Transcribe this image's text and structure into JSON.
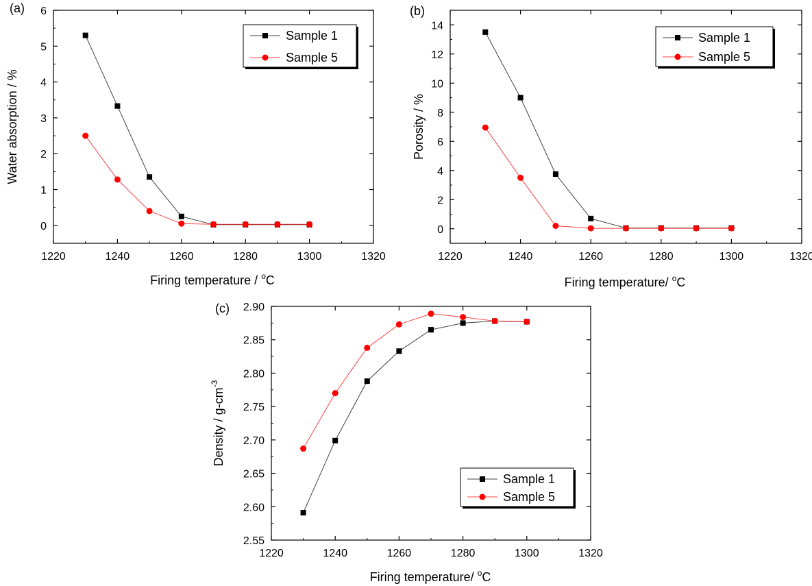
{
  "chart_data": [
    {
      "id": "a",
      "type": "line",
      "panel_label": "(a)",
      "xlabel": "Firing temperature / ",
      "xunit_sup": "o",
      "xunit": "C",
      "ylabel": "Water absorption / %",
      "xlim": [
        1220,
        1320
      ],
      "ylim": [
        -0.5,
        6
      ],
      "xticks": [
        1220,
        1240,
        1260,
        1280,
        1300,
        1320
      ],
      "xtick_labels": [
        "1220",
        "1240",
        "1260",
        "1280",
        "1300",
        "1320"
      ],
      "yticks": [
        0,
        1,
        2,
        3,
        4,
        5,
        6
      ],
      "ytick_labels": [
        "0",
        "1",
        "2",
        "3",
        "4",
        "5",
        "6"
      ],
      "legend_position": "top-right",
      "series": [
        {
          "name": "Sample 1",
          "color": "#000000",
          "marker": "square",
          "x": [
            1230,
            1240,
            1250,
            1260,
            1270,
            1280,
            1290,
            1300
          ],
          "y": [
            5.3,
            3.33,
            1.35,
            0.25,
            0.02,
            0.02,
            0.02,
            0.02
          ]
        },
        {
          "name": "Sample 5",
          "color": "#ff0000",
          "marker": "circle",
          "x": [
            1230,
            1240,
            1250,
            1260,
            1270,
            1280,
            1290,
            1300
          ],
          "y": [
            2.5,
            1.28,
            0.4,
            0.05,
            0.03,
            0.03,
            0.03,
            0.03
          ]
        }
      ]
    },
    {
      "id": "b",
      "type": "line",
      "panel_label": "(b)",
      "xlabel": "Firing temperature/ ",
      "xunit_sup": "o",
      "xunit": "C",
      "ylabel": "Porosity / %",
      "xlim": [
        1220,
        1320
      ],
      "ylim": [
        -1,
        15
      ],
      "xticks": [
        1220,
        1240,
        1260,
        1280,
        1300,
        1320
      ],
      "xtick_labels": [
        "1220",
        "1240",
        "1260",
        "1280",
        "1300",
        "1320"
      ],
      "yticks": [
        0,
        2,
        4,
        6,
        8,
        10,
        12,
        14
      ],
      "ytick_labels": [
        "0",
        "2",
        "4",
        "6",
        "8",
        "10",
        "12",
        "14"
      ],
      "legend_position": "top-right",
      "series": [
        {
          "name": "Sample 1",
          "color": "#000000",
          "marker": "square",
          "x": [
            1230,
            1240,
            1250,
            1260,
            1270,
            1280,
            1290,
            1300
          ],
          "y": [
            13.5,
            9.0,
            3.75,
            0.7,
            0.05,
            0.05,
            0.05,
            0.05
          ]
        },
        {
          "name": "Sample 5",
          "color": "#ff0000",
          "marker": "circle",
          "x": [
            1230,
            1240,
            1250,
            1260,
            1270,
            1280,
            1290,
            1300
          ],
          "y": [
            6.95,
            3.5,
            0.2,
            0.03,
            0.03,
            0.03,
            0.03,
            0.03
          ]
        }
      ]
    },
    {
      "id": "c",
      "type": "line",
      "panel_label": "(c)",
      "xlabel": "Firing temperature/ ",
      "xunit_sup": "o",
      "xunit": "C",
      "ylabel": "Density / g-cm",
      "ylabel_sup": "-3",
      "xlim": [
        1220,
        1320
      ],
      "ylim": [
        2.55,
        2.9
      ],
      "xticks": [
        1220,
        1240,
        1260,
        1280,
        1300,
        1320
      ],
      "xtick_labels": [
        "1220",
        "1240",
        "1260",
        "1280",
        "1300",
        "1320"
      ],
      "yticks": [
        2.55,
        2.6,
        2.65,
        2.7,
        2.75,
        2.8,
        2.85,
        2.9
      ],
      "ytick_labels": [
        "2.55",
        "2.60",
        "2.65",
        "2.70",
        "2.75",
        "2.80",
        "2.85",
        "2.90"
      ],
      "legend_position": "bottom-right",
      "series": [
        {
          "name": "Sample 1",
          "color": "#000000",
          "marker": "square",
          "x": [
            1230,
            1240,
            1250,
            1260,
            1270,
            1280,
            1290,
            1300
          ],
          "y": [
            2.591,
            2.699,
            2.788,
            2.833,
            2.865,
            2.875,
            2.878,
            2.877
          ]
        },
        {
          "name": "Sample 5",
          "color": "#ff0000",
          "marker": "circle",
          "x": [
            1230,
            1240,
            1250,
            1260,
            1270,
            1280,
            1290,
            1300
          ],
          "y": [
            2.687,
            2.77,
            2.838,
            2.873,
            2.889,
            2.884,
            2.878,
            2.877
          ]
        }
      ]
    }
  ]
}
